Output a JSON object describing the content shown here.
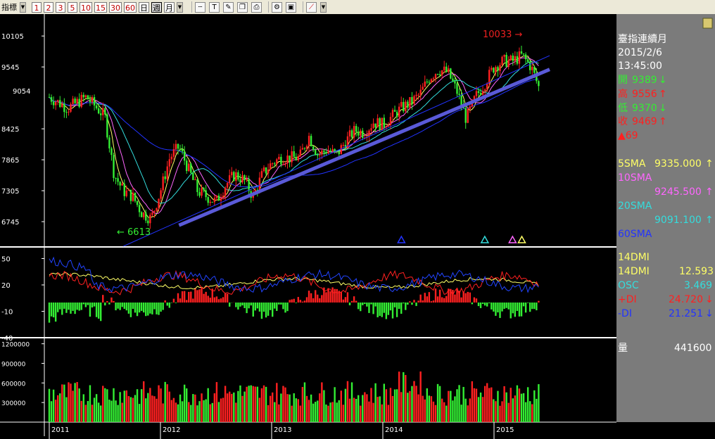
{
  "toolbar": {
    "indicator_label": "指標",
    "periods": [
      "1",
      "2",
      "3",
      "5",
      "10",
      "15",
      "30",
      "60"
    ],
    "period_units": [
      "日",
      "週",
      "月"
    ],
    "selected_unit": "週",
    "tools": [
      "dashed-line-icon",
      "text-tool-icon",
      "pencil-icon",
      "copy-icon",
      "print-icon",
      "settings-icon",
      "save-icon",
      "trend-icon"
    ]
  },
  "info_panel": {
    "title": "臺指連續月",
    "date": "2015/2/6",
    "time": "13:45:00",
    "open_label": "開",
    "open_value": "9389",
    "open_arrow": "↓",
    "high_label": "高",
    "high_value": "9556",
    "high_arrow": "↑",
    "low_label": "低",
    "low_value": "9370",
    "low_arrow": "↓",
    "close_label": "收",
    "close_value": "9469",
    "close_arrow": "↑",
    "change": "▲69",
    "sma5_label": "5SMA",
    "sma5_value": "9335.000",
    "sma5_arrow": "↑",
    "sma10_label": "10SMA",
    "sma10_value": "9245.500",
    "sma10_arrow": "↑",
    "sma20_label": "20SMA",
    "sma20_value": "9091.100",
    "sma20_arrow": "↑",
    "sma60_label": "60SMA",
    "dmi_title": "14DMI",
    "dmi_label": "14DMI",
    "dmi_value": "12.593",
    "osc_label": "OSC",
    "osc_value": "3.469",
    "pdi_label": "+DI",
    "pdi_value": "24.720",
    "pdi_arrow": "↓",
    "mdi_label": "-DI",
    "mdi_value": "21.251",
    "mdi_arrow": "↓",
    "vol_label": "量",
    "vol_value": "441600"
  },
  "colors": {
    "up": "#ff2020",
    "down": "#33ee33",
    "sma5": "#ffff66",
    "sma10": "#ff66ff",
    "sma20": "#33dddd",
    "sma60": "#2233ff",
    "trendline": "#5a5ad8",
    "adx": "#ffff66",
    "pdi": "#ff2020",
    "mdi": "#2244ff",
    "panel_bg": "#7b7b7b"
  },
  "chart_data": {
    "type": "candlestick",
    "x_labels": [
      "2011",
      "2012",
      "2013",
      "2014",
      "2015"
    ],
    "price_ticks": [
      10105,
      9545,
      8425,
      7865,
      7305,
      6745
    ],
    "price_range": [
      6300,
      10400
    ],
    "current_price_label": "9054",
    "high_annotation": {
      "text": "10033 →",
      "value": 10033,
      "date": "2015-01"
    },
    "low_annotation": {
      "text": "← 6613",
      "value": 6613,
      "date": "2011-12"
    },
    "signal_markers": [
      {
        "date": "2014-03",
        "color": "#2233ff"
      },
      {
        "date": "2014-12",
        "color": "#33dddd"
      },
      {
        "date": "2015-03",
        "color": "#ff66ff"
      },
      {
        "date": "2015-04",
        "color": "#ffff66"
      }
    ],
    "trendline": {
      "from_date": "2011-09",
      "from_value": 6300,
      "to_date": "2015-07",
      "to_value": 9750
    },
    "trendline_thick": {
      "from_date": "2012-03",
      "from_value": 6680,
      "to_date": "2015-07",
      "to_value": 9500
    },
    "price_path": [
      [
        "2011-01",
        9000
      ],
      [
        "2011-03",
        8800
      ],
      [
        "2011-05",
        9000
      ],
      [
        "2011-07",
        8650
      ],
      [
        "2011-08",
        7600
      ],
      [
        "2011-09",
        7300
      ],
      [
        "2011-10",
        7200
      ],
      [
        "2011-11",
        6900
      ],
      [
        "2011-12",
        6800
      ],
      [
        "2012-01",
        7300
      ],
      [
        "2012-02",
        7900
      ],
      [
        "2012-03",
        8100
      ],
      [
        "2012-04",
        7700
      ],
      [
        "2012-05",
        7300
      ],
      [
        "2012-06",
        7200
      ],
      [
        "2012-07",
        7100
      ],
      [
        "2012-08",
        7400
      ],
      [
        "2012-09",
        7600
      ],
      [
        "2012-10",
        7500
      ],
      [
        "2012-11",
        7200
      ],
      [
        "2012-12",
        7600
      ],
      [
        "2013-01",
        7800
      ],
      [
        "2013-02",
        7900
      ],
      [
        "2013-03",
        7900
      ],
      [
        "2013-04",
        7900
      ],
      [
        "2013-05",
        8300
      ],
      [
        "2013-06",
        7950
      ],
      [
        "2013-07",
        8050
      ],
      [
        "2013-08",
        7950
      ],
      [
        "2013-09",
        8200
      ],
      [
        "2013-10",
        8400
      ],
      [
        "2013-11",
        8350
      ],
      [
        "2013-12",
        8550
      ],
      [
        "2014-01",
        8500
      ],
      [
        "2014-02",
        8650
      ],
      [
        "2014-03",
        8800
      ],
      [
        "2014-04",
        8900
      ],
      [
        "2014-05",
        9050
      ],
      [
        "2014-06",
        9350
      ],
      [
        "2014-07",
        9500
      ],
      [
        "2014-08",
        9450
      ],
      [
        "2014-09",
        9100
      ],
      [
        "2014-10",
        8600
      ],
      [
        "2014-11",
        9000
      ],
      [
        "2014-12",
        9250
      ],
      [
        "2015-01",
        9550
      ],
      [
        "2015-02",
        9650
      ],
      [
        "2015-03",
        9650
      ],
      [
        "2015-04",
        9750
      ],
      [
        "2015-05",
        9550
      ],
      [
        "2015-06",
        9100
      ]
    ],
    "dmi_ticks": [
      50,
      20,
      -10,
      -40
    ],
    "dmi_range": [
      -40,
      60
    ],
    "volume_ticks": [
      1200000,
      900000,
      600000,
      300000
    ],
    "volume_range": [
      0,
      1250000
    ]
  }
}
